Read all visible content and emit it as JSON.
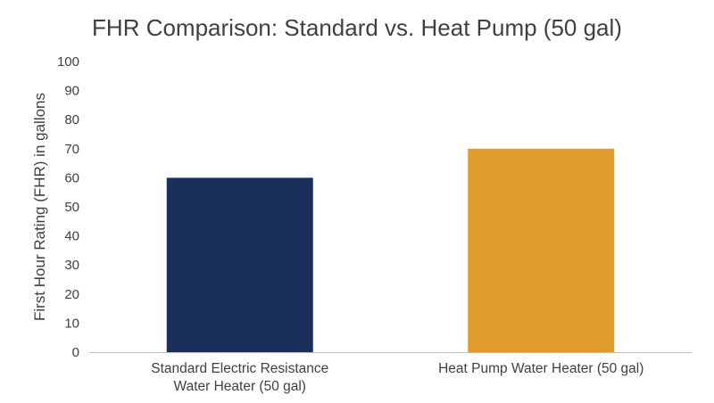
{
  "chart_data": {
    "type": "bar",
    "title": "FHR Comparison: Standard vs. Heat Pump (50 gal)",
    "xlabel": "",
    "ylabel": "First Hour Rating (FHR) in gallons",
    "ylim": [
      0,
      100
    ],
    "yticks": [
      "0",
      "10",
      "20",
      "30",
      "40",
      "50",
      "60",
      "70",
      "80",
      "90",
      "100"
    ],
    "grid": false,
    "legend": "none",
    "categories": [
      [
        "Standard Electric Resistance",
        "Water Heater (50 gal)"
      ],
      [
        "Heat Pump Water Heater (50 gal)"
      ]
    ],
    "values": [
      60,
      70
    ],
    "colors": [
      "#1b2f5b",
      "#e09b2d"
    ]
  }
}
